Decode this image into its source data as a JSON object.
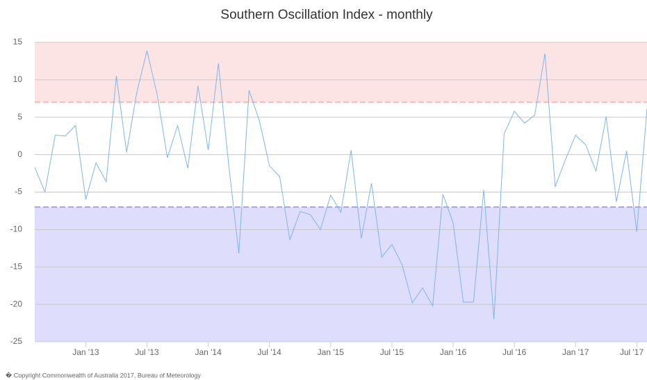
{
  "chart_data": {
    "type": "line",
    "title": "Southern Oscillation Index - monthly",
    "categories": [
      null,
      null,
      null,
      null,
      null,
      "Jan '13",
      null,
      null,
      null,
      null,
      null,
      "Jul '13",
      null,
      null,
      null,
      null,
      null,
      "Jan '14",
      null,
      null,
      null,
      null,
      null,
      "Jul '14",
      null,
      null,
      null,
      null,
      null,
      "Jan '15",
      null,
      null,
      null,
      null,
      null,
      "Jul '15",
      null,
      null,
      null,
      null,
      null,
      "Jan '16",
      null,
      null,
      null,
      null,
      null,
      "Jul '16",
      null,
      null,
      null,
      null,
      null,
      "Jan '17",
      null,
      null,
      null,
      null,
      null,
      "Jul '17",
      null
    ],
    "series": [
      {
        "color": "#7cb5ec",
        "values": [
          -1.7,
          -5,
          2.6,
          2.5,
          3.9,
          -6.0,
          -1.1,
          -3.6,
          10.5,
          0.3,
          8.3,
          13.9,
          8.0,
          -0.4,
          3.9,
          -1.8,
          9.2,
          0.6,
          12.2,
          -1.3,
          -13.2,
          8.6,
          4.6,
          -1.5,
          -2.9,
          -11.4,
          -7.6,
          -8.0,
          -10.0,
          -5.4,
          -7.7,
          0.6,
          -11.2,
          -3.8,
          -13.7,
          -12.0,
          -14.7,
          -19.8,
          -17.8,
          -20.2,
          -5.3,
          -9.1,
          -19.7,
          -19.7,
          -4.7,
          -22.0,
          2.8,
          5.8,
          4.2,
          5.3,
          13.5,
          -4.3,
          -0.7,
          2.6,
          1.3,
          -2.2,
          5.1,
          -6.3,
          0.5,
          -10.3,
          6.1
        ]
      }
    ],
    "ylim": [
      -25,
      15
    ],
    "yticks": [
      -25,
      -20,
      -15,
      -10,
      -5,
      0,
      5,
      10,
      15
    ],
    "grid": true,
    "plot_bands": [
      {
        "from": 7,
        "to": 15,
        "color": "#fde4e4",
        "line_color": "#f5b8b8"
      },
      {
        "from": -25,
        "to": -7,
        "color": "#dedefc",
        "line_color": "#a8a8ee"
      }
    ],
    "credit": "� Copyright Commonwealth of Australia 2017, Bureau of Meteorology"
  }
}
